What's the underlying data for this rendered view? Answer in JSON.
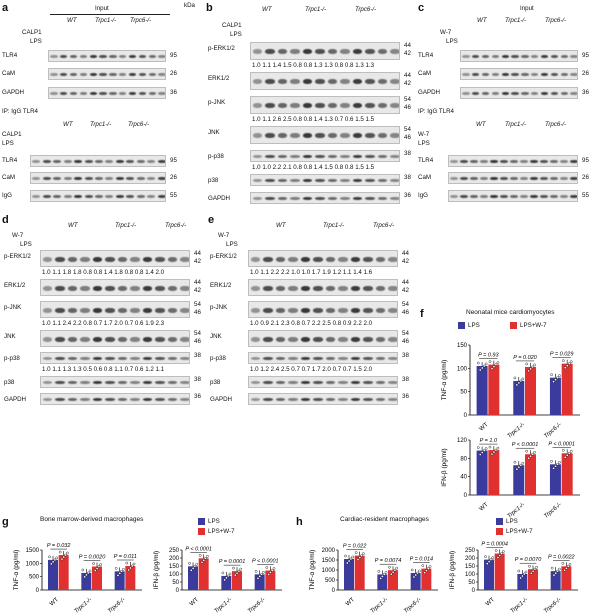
{
  "figure": {
    "panels": [
      {
        "id": "a",
        "label": "a",
        "header_left": "Input",
        "header_ip": "IP: IgG    TLR4",
        "groups": [
          "WT",
          "Trpc1-/-",
          "Trpc6-/-"
        ],
        "rows_top": [
          "CALP1",
          "LPS"
        ],
        "rows_top2": [
          "CALP1",
          "LPS"
        ],
        "blots_input": [
          {
            "name": "TLR4",
            "kda": "95"
          },
          {
            "name": "CaM",
            "kda": "26"
          },
          {
            "name": "GAPDH",
            "kda": "36"
          }
        ],
        "blots_ip": [
          {
            "name": "TLR4",
            "kda": "95"
          },
          {
            "name": "CaM",
            "kda": "26"
          },
          {
            "name": "IgG",
            "kda": "55"
          }
        ]
      },
      {
        "id": "b",
        "label": "b",
        "groups": [
          "WT",
          "Trpc1-/-",
          "Trpc6-/-"
        ],
        "rows_top": [
          "CALP1",
          "LPS"
        ],
        "blots": [
          {
            "name": "p-ERK1/2",
            "kda": "44\n42",
            "vals": "1.0 1.1 1.4 1.5 0.8 0.8 1.3 1.3 0.8 0.8 1.3 1.3"
          },
          {
            "name": "ERK1/2",
            "kda": "44\n42"
          },
          {
            "name": "p-JNK",
            "kda": "54\n46",
            "vals": "1.0 1.1 2.6 2.5 0.8 0.8 1.4 1.3 0.7 0.6 1.5 1.5"
          },
          {
            "name": "JNK",
            "kda": "54\n46"
          },
          {
            "name": "p-p38",
            "kda": "38",
            "vals": "1.0 1.0 2.2 2.1 0.8 0.8 1.4 1.5 0.8 0.8 1.5 1.5"
          },
          {
            "name": "p38",
            "kda": "38"
          },
          {
            "name": "GAPDH",
            "kda": "36"
          }
        ]
      },
      {
        "id": "c",
        "label": "c",
        "header_left": "Input",
        "groups": [
          "WT",
          "Trpc1-/-",
          "Trpc6-/-"
        ],
        "rows_top": [
          "W-7",
          "LPS"
        ]
      },
      {
        "id": "d",
        "label": "d",
        "groups": [
          "WT",
          "Trpc1-/-",
          "Trpc6-/-"
        ],
        "rows_top": [
          "W-7",
          "LPS"
        ],
        "vals": [
          "1.0 1.1 1.8 1.8 0.8 0.8 1.4 1.8 0.8 0.8 1.4 2.0",
          "1.0 1.1 2.4 2.2 0.8 0.7 1.7 2.0 0.7 0.6 1.9 2.3",
          "1.0 1.1 1.3 1.3 0.5 0.6 0.8 1.1 0.7 0.6 1.2 1.1"
        ]
      },
      {
        "id": "e",
        "label": "e",
        "groups": [
          "WT",
          "Trpc1-/-",
          "Trpc6-/-"
        ],
        "rows_top": [
          "W-7",
          "LPS"
        ],
        "vals": [
          "1.0 1.1 2.2 2.2 1.0 1.0 1.7 1.9 1.2 1.1 1.4 1.6",
          "1.0 0.9 2.1 2.3 0.8 0.7 2.2 2.5 0.8 0.9 2.2 2.0",
          "1.0 1.2 2.4 2.5 0.7 0.7 1.7 2.0 0.7 0.7 1.5 2.0"
        ]
      },
      {
        "id": "f",
        "label": "f",
        "title": "Neonatal mice cardiomyocytes"
      },
      {
        "id": "g",
        "label": "g",
        "title": "Bone marrow-derived macrophages"
      },
      {
        "id": "h",
        "label": "h",
        "title": "Cardiac-resident macrophages"
      }
    ],
    "legend": {
      "lps": "LPS",
      "lpsw7": "LPS+W-7",
      "lps_color": "#3b3b9e",
      "lpsw7_color": "#e03030"
    },
    "stats": {
      "f_tnf": [
        "P = 0.93",
        "P = 0.020",
        "P = 0.029"
      ],
      "f_ifn": [
        "P = 1.0",
        "P < 0.0001",
        "P < 0.0001"
      ],
      "g_tnf": [
        "P = 0.032",
        "P = 0.0020",
        "P = 0.011"
      ],
      "g_ifn": [
        "P < 0.0001",
        "P = 0.0001",
        "P < 0.0001"
      ],
      "h_tnf": [
        "P = 0.022",
        "P = 0.0074",
        "P = 0.014"
      ],
      "h_ifn": [
        "P = 0.0004",
        "P = 0.0070",
        "P = 0.0022"
      ]
    },
    "axes": {
      "tnf": "TNF-α (pg/ml)",
      "ifn": "IFN-β (pg/ml)",
      "cats": [
        "WT",
        "Trpc1-/-",
        "Trpc6-/-"
      ]
    }
  },
  "chart_data": [
    {
      "panel": "f",
      "type": "bar",
      "title": "Neonatal mice cardiomyocytes",
      "ylabel": "TNF-α (pg/ml)",
      "ylim": [
        0,
        150
      ],
      "categories": [
        "WT",
        "Trpc1-/-",
        "Trpc6-/-"
      ],
      "series": [
        {
          "name": "LPS",
          "values": [
            105,
            73,
            80
          ]
        },
        {
          "name": "LPS+W-7",
          "values": [
            108,
            103,
            110
          ]
        }
      ]
    },
    {
      "panel": "f",
      "type": "bar",
      "ylabel": "IFN-β (pg/ml)",
      "ylim": [
        0,
        120
      ],
      "categories": [
        "WT",
        "Trpc1-/-",
        "Trpc6-/-"
      ],
      "series": [
        {
          "name": "LPS",
          "values": [
            97,
            65,
            67
          ]
        },
        {
          "name": "LPS+W-7",
          "values": [
            98,
            89,
            91
          ]
        }
      ]
    },
    {
      "panel": "g",
      "type": "bar",
      "title": "Bone marrow-derived macrophages",
      "ylabel": "TNF-α (pg/ml)",
      "ylim": [
        0,
        1500
      ],
      "categories": [
        "WT",
        "Trpc1-/-",
        "Trpc6-/-"
      ],
      "series": [
        {
          "name": "LPS",
          "values": [
            1130,
            640,
            700
          ]
        },
        {
          "name": "LPS+W-7",
          "values": [
            1310,
            880,
            900
          ]
        }
      ]
    },
    {
      "panel": "g",
      "type": "bar",
      "ylabel": "IFN-β (pg/ml)",
      "ylim": [
        0,
        250
      ],
      "categories": [
        "WT",
        "Trpc1-/-",
        "Trpc6-/-"
      ],
      "series": [
        {
          "name": "LPS",
          "values": [
            148,
            88,
            98
          ]
        },
        {
          "name": "LPS+W-7",
          "values": [
            198,
            118,
            122
          ]
        }
      ]
    },
    {
      "panel": "h",
      "type": "bar",
      "title": "Cardiac-resident macrophages",
      "ylabel": "TNF-α (pg/ml)",
      "ylim": [
        0,
        2000
      ],
      "categories": [
        "WT",
        "Trpc1-/-",
        "Trpc6-/-"
      ],
      "series": [
        {
          "name": "LPS",
          "values": [
            1550,
            780,
            850
          ]
        },
        {
          "name": "LPS+W-7",
          "values": [
            1720,
            990,
            1070
          ]
        }
      ]
    },
    {
      "panel": "h",
      "type": "bar",
      "ylabel": "IFN-β (pg/ml)",
      "ylim": [
        0,
        250
      ],
      "categories": [
        "WT",
        "Trpc1-/-",
        "Trpc6-/-"
      ],
      "series": [
        {
          "name": "LPS",
          "values": [
            190,
            100,
            118
          ]
        },
        {
          "name": "LPS+W-7",
          "values": [
            228,
            130,
            148
          ]
        }
      ]
    }
  ]
}
